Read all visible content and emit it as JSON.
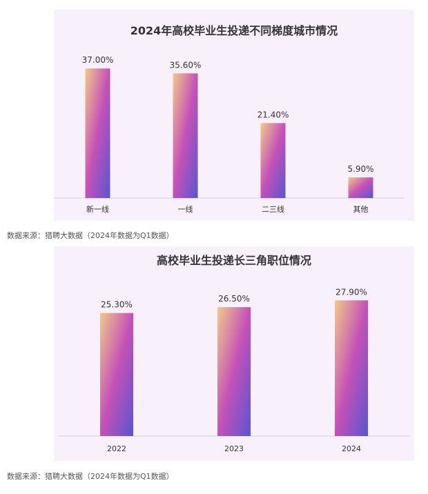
{
  "chart_data": [
    {
      "type": "bar",
      "title": "2024年高校毕业生投递不同梯度城市情况",
      "categories": [
        "新一线",
        "一线",
        "二三线",
        "其他"
      ],
      "values": [
        37.0,
        35.6,
        21.4,
        5.9
      ],
      "value_labels": [
        "37.00%",
        "35.60%",
        "21.40%",
        "5.90%"
      ],
      "ylim": [
        0,
        40
      ],
      "grid": false,
      "legend": "none"
    },
    {
      "type": "bar",
      "title": "高校毕业生投递长三角职位情况",
      "categories": [
        "2022",
        "2023",
        "2024"
      ],
      "values": [
        25.3,
        26.5,
        27.9
      ],
      "value_labels": [
        "25.30%",
        "26.50%",
        "27.90%"
      ],
      "ylim": [
        0,
        40
      ],
      "grid": false,
      "legend": "none"
    }
  ],
  "sources": [
    "数据来源：猎聘大数据（2024年数据为Q1数据）",
    "数据来源：猎聘大数据（2024年数据为Q1数据）"
  ],
  "colors": {
    "panel_bg": "#f8f1fc",
    "bar_top": "#f2c98a",
    "bar_mid": "#c451b8",
    "bar_bottom": "#5a55d0",
    "axis": "#d8cde0"
  }
}
